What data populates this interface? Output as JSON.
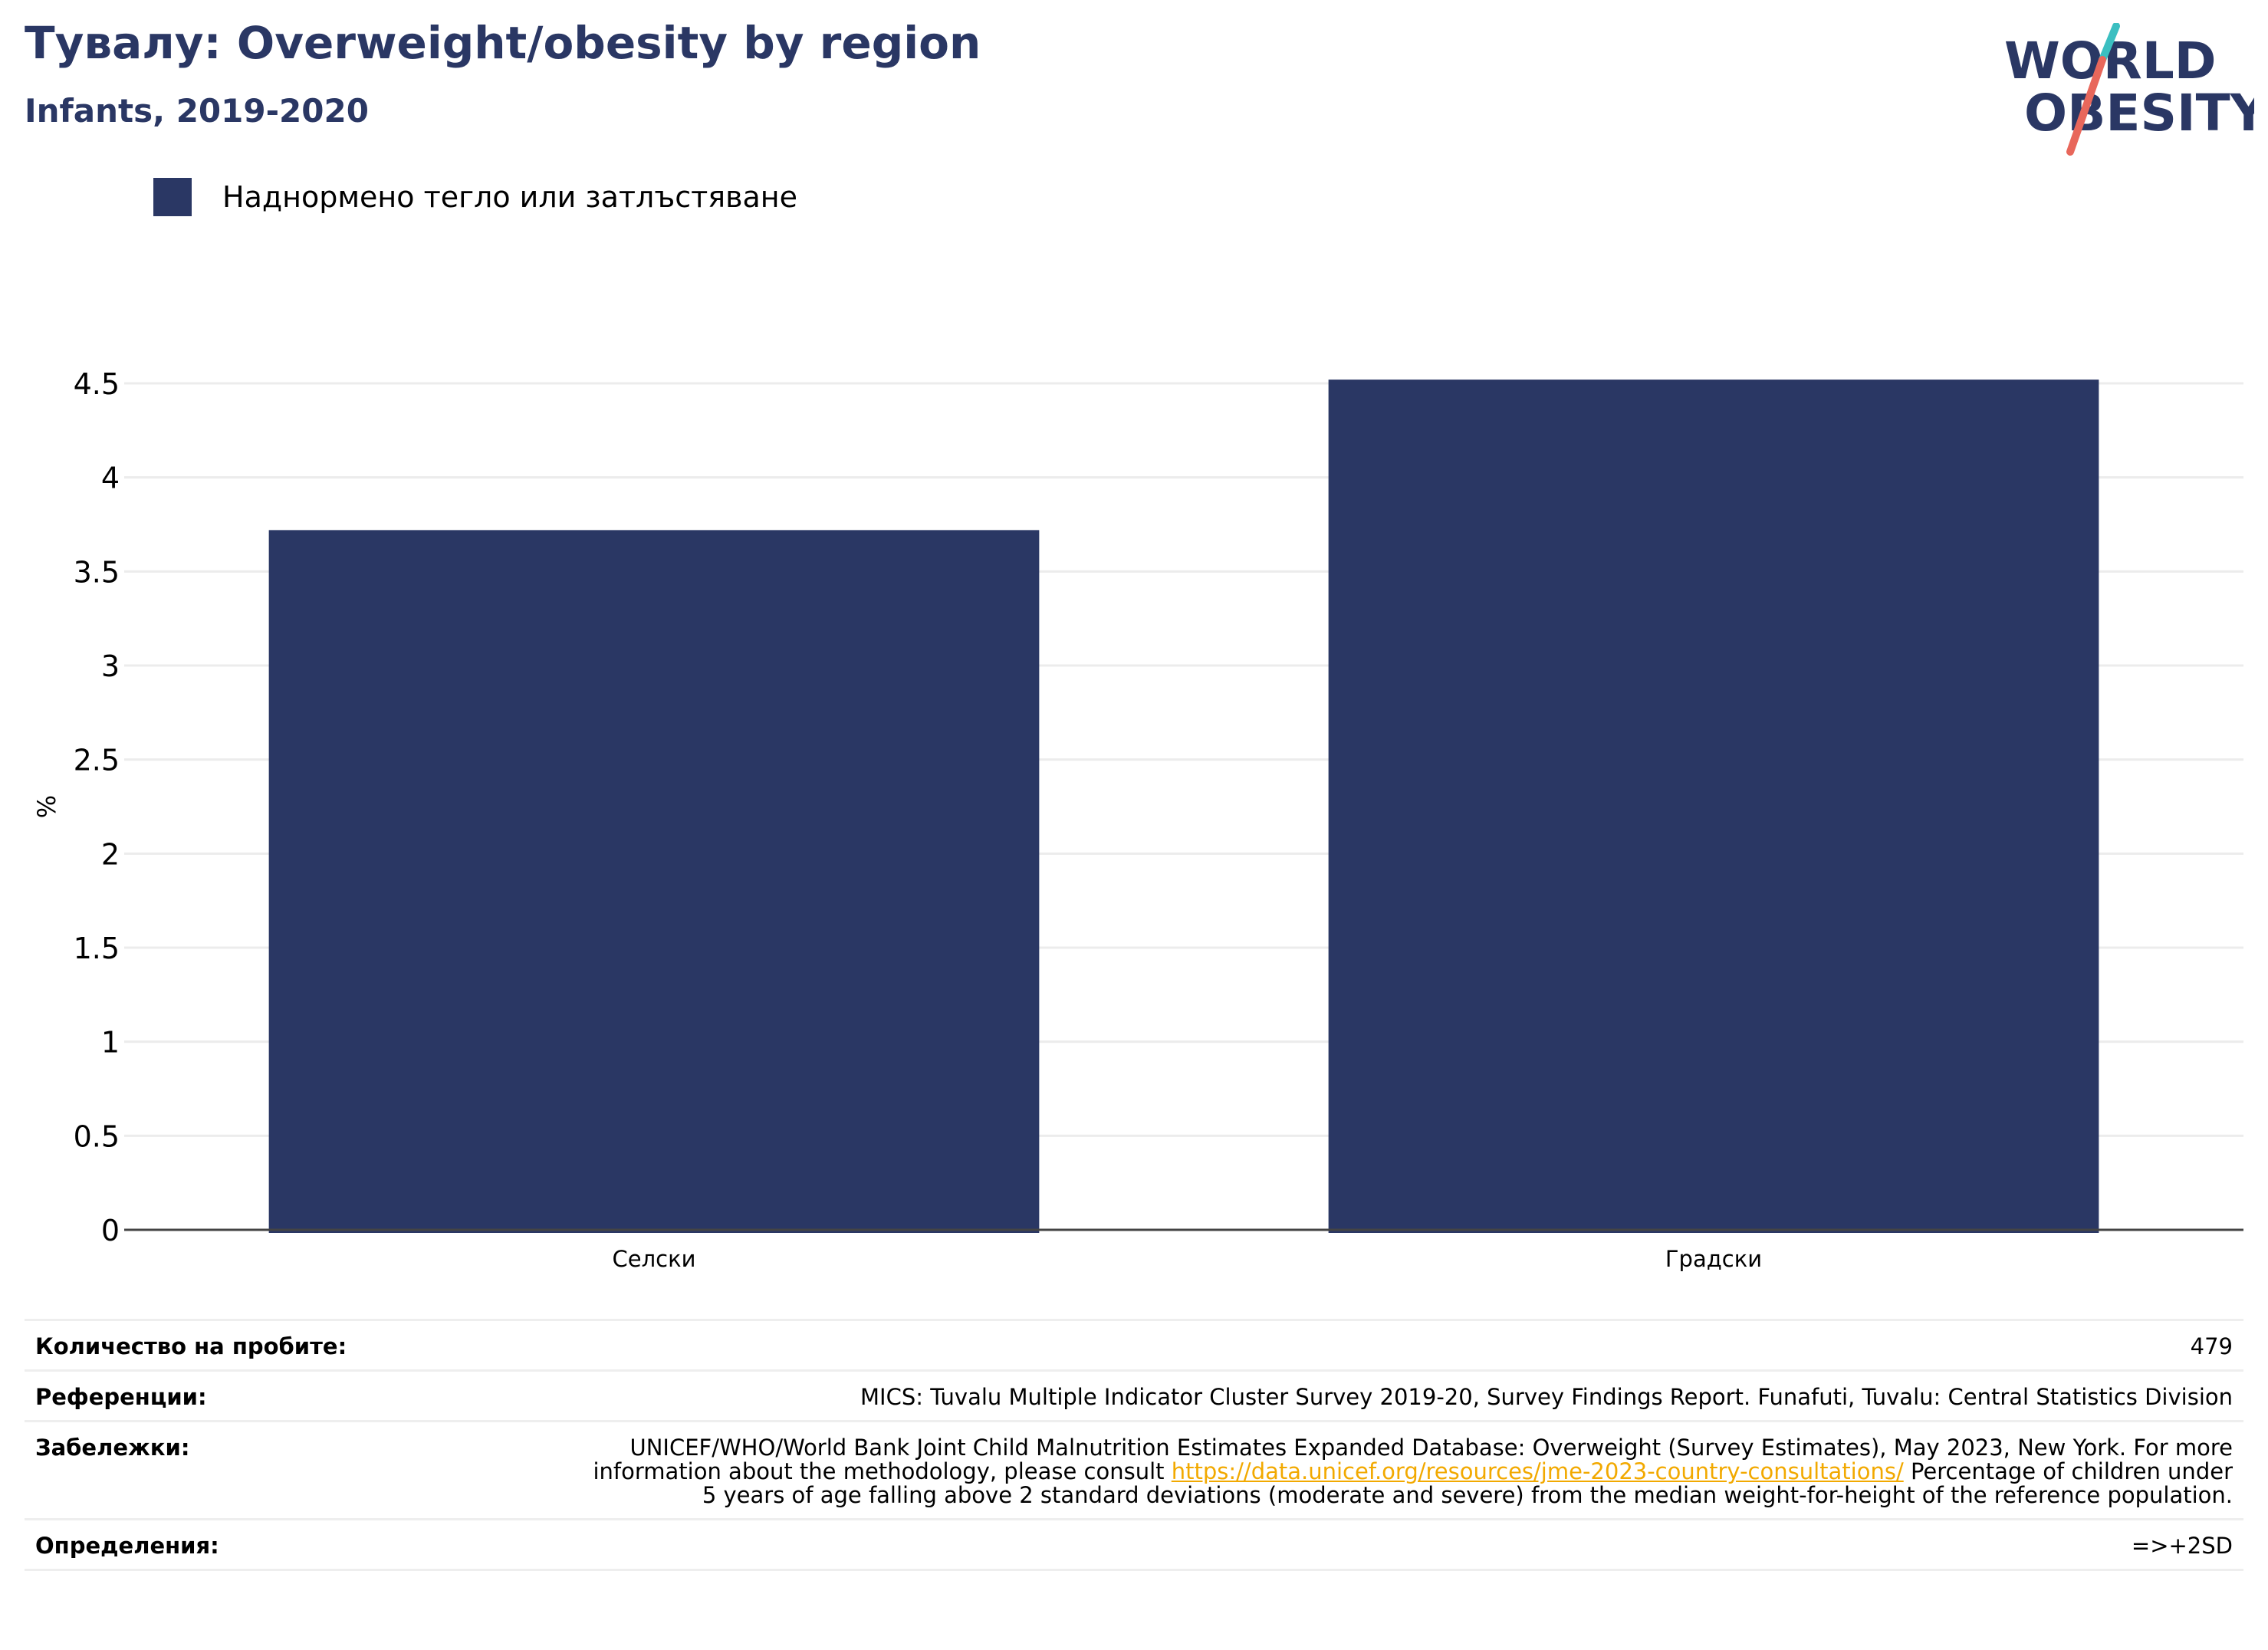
{
  "header": {
    "title": "Тувалу: Overweight/obesity by region",
    "subtitle": "Infants, 2019-2020"
  },
  "logo": {
    "line1": "WORLD",
    "line2": "OBESITY",
    "colors": {
      "navy": "#2a3764",
      "teal": "#3bbfc1",
      "coral": "#e8675b"
    }
  },
  "legend": {
    "label": "Наднормено тегло или затлъстяване",
    "color": "#2a3764"
  },
  "chart_data": {
    "type": "bar",
    "categories": [
      "Селски",
      "Градски"
    ],
    "series": [
      {
        "name": "Наднормено тегло или затлъстяване",
        "values": [
          3.72,
          4.52
        ],
        "color": "#2a3764"
      }
    ],
    "ylabel": "%",
    "xlabel": "",
    "ylim": [
      0,
      4.5
    ],
    "yticks": [
      "0",
      "0.5",
      "1",
      "1.5",
      "2",
      "2.5",
      "3",
      "3.5",
      "4",
      "4.5"
    ],
    "grid": true,
    "legend_position": "top-left"
  },
  "footer": {
    "sample_label": "Количество на пробите:",
    "sample_value": "479",
    "ref_label": "Референции:",
    "ref_value": "MICS: Tuvalu Multiple Indicator Cluster Survey 2019-20, Survey Findings Report. Funafuti, Tuvalu: Central Statistics Division",
    "notes_label": "Забележки:",
    "notes_before": "UNICEF/WHO/World Bank Joint Child Malnutrition Estimates Expanded Database: Overweight (Survey Estimates), May 2023, New York. For more information about the methodology, please consult",
    "notes_link": "https://data.unicef.org/resources/jme-2023-country-consultations/",
    "notes_after": "Percentage of children under 5 years of age falling above 2 standard deviations (moderate and severe) from the median weight-for-height of the reference population.",
    "def_label": "Определения:",
    "def_value": "=>+2SD"
  }
}
